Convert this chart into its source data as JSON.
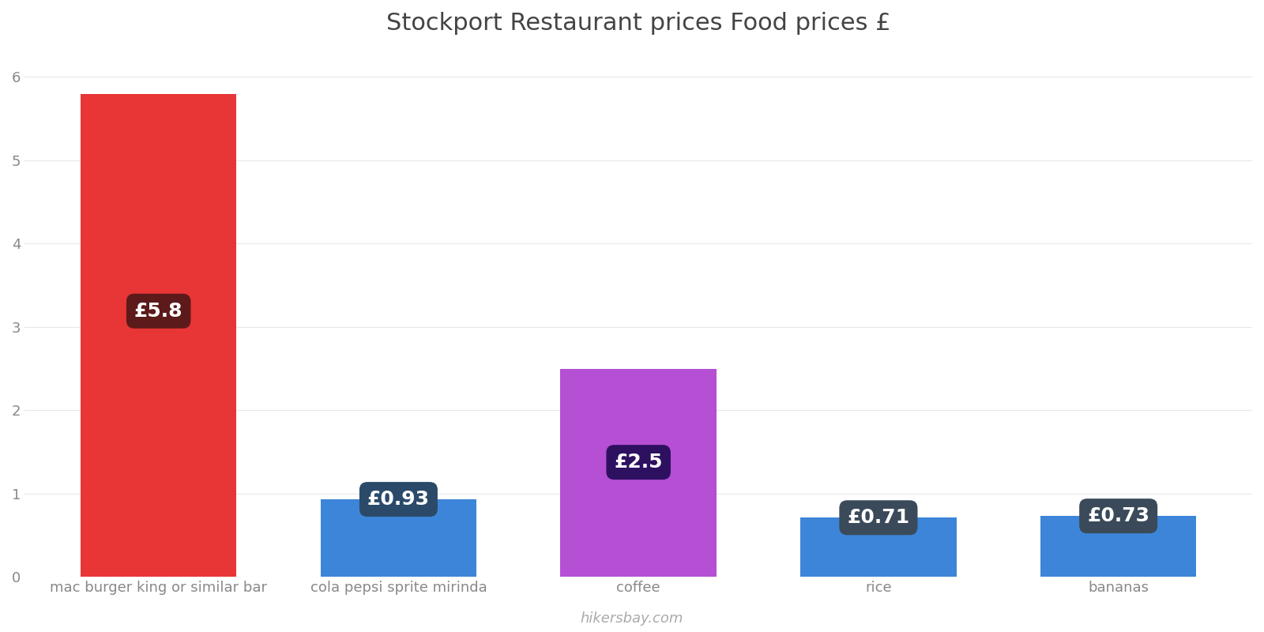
{
  "categories": [
    "mac burger king or similar bar",
    "cola pepsi sprite mirinda",
    "coffee",
    "rice",
    "bananas"
  ],
  "values": [
    5.8,
    0.93,
    2.5,
    0.71,
    0.73
  ],
  "bar_colors": [
    "#e83535",
    "#3d85d8",
    "#b54fd4",
    "#3d85d8",
    "#3d85d8"
  ],
  "label_texts": [
    "£5.8",
    "£0.93",
    "£2.5",
    "£0.71",
    "£0.73"
  ],
  "label_bg_colors": [
    "#5c1a1a",
    "#2b4a6a",
    "#2d1060",
    "#3a4a5a",
    "#3a4a5a"
  ],
  "label_positions": [
    "inside_mid",
    "top",
    "inside_mid",
    "top",
    "top"
  ],
  "title": "Stockport Restaurant prices Food prices £",
  "title_fontsize": 22,
  "ylim": [
    0,
    6.3
  ],
  "yticks": [
    0,
    1,
    2,
    3,
    4,
    5,
    6
  ],
  "background_color": "#ffffff",
  "watermark": "hikersbay.com",
  "label_fontsize": 18,
  "tick_fontsize": 13,
  "bar_width": 0.65
}
